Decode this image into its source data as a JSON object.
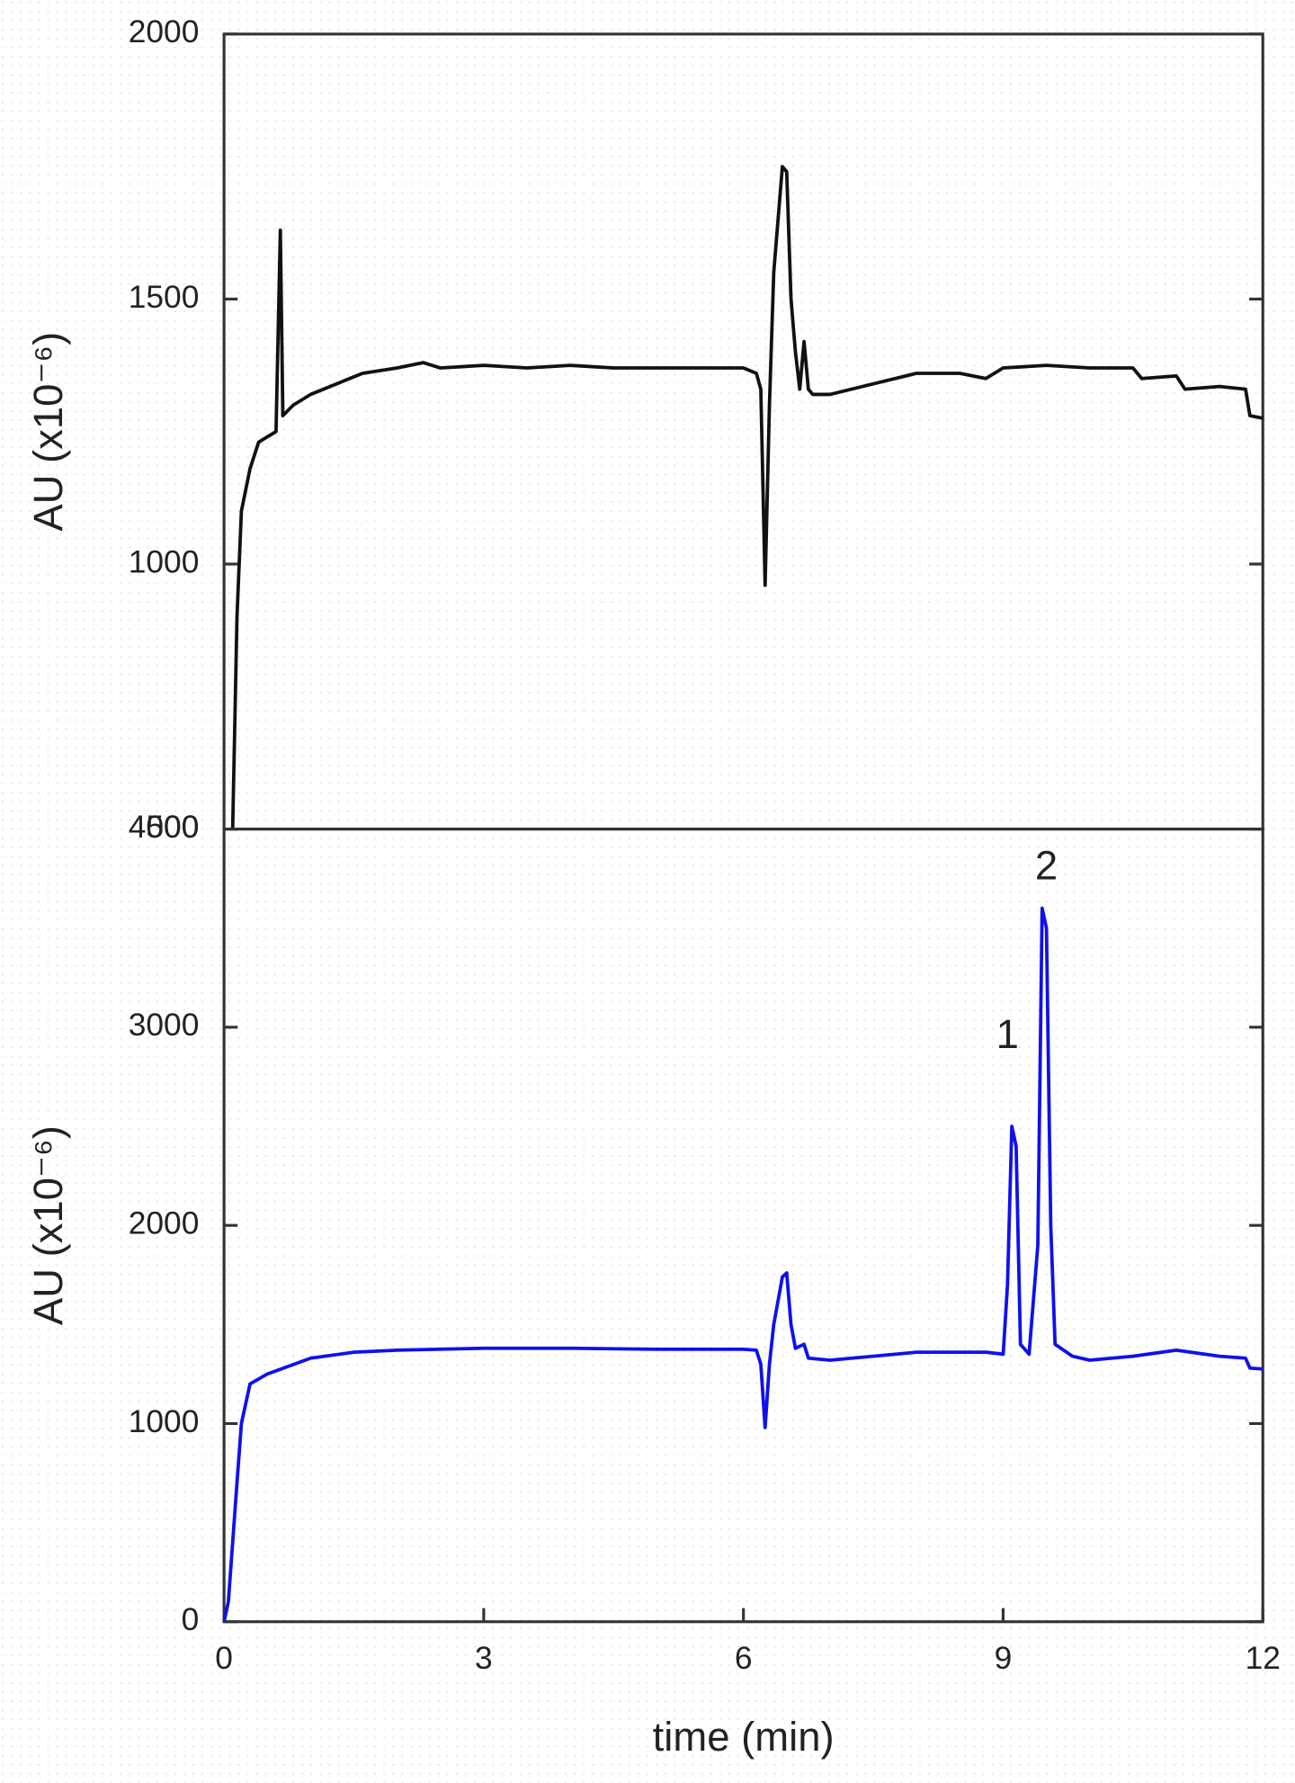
{
  "chart_data": [
    {
      "type": "line",
      "ylabel": "AU (x10⁻⁶)",
      "x": [
        0.1,
        0.15,
        0.2,
        0.3,
        0.4,
        0.5,
        0.6,
        0.65,
        0.68,
        0.8,
        1.0,
        1.3,
        1.6,
        2.0,
        2.3,
        2.5,
        3,
        3.5,
        4,
        4.5,
        5,
        5.5,
        6.0,
        6.15,
        6.2,
        6.25,
        6.3,
        6.35,
        6.45,
        6.5,
        6.55,
        6.6,
        6.65,
        6.7,
        6.75,
        6.8,
        7,
        7.5,
        8,
        8.5,
        8.8,
        9,
        9.5,
        10,
        10.5,
        10.6,
        11,
        11.1,
        11.5,
        11.8,
        11.85,
        12
      ],
      "series": [
        {
          "color": "#111111",
          "values": [
            500,
            900,
            1100,
            1180,
            1230,
            1240,
            1250,
            1630,
            1280,
            1300,
            1320,
            1340,
            1360,
            1370,
            1380,
            1370,
            1375,
            1370,
            1375,
            1370,
            1370,
            1370,
            1370,
            1360,
            1330,
            960,
            1300,
            1550,
            1750,
            1740,
            1500,
            1400,
            1330,
            1420,
            1330,
            1320,
            1320,
            1340,
            1360,
            1360,
            1350,
            1370,
            1375,
            1370,
            1370,
            1350,
            1355,
            1330,
            1335,
            1330,
            1280,
            1275
          ]
        }
      ],
      "xlim": [
        0,
        12
      ],
      "ylim": [
        500,
        2000
      ],
      "yticks": [
        500,
        1000,
        1500,
        2000
      ]
    },
    {
      "type": "line",
      "ylabel": "AU (x10⁻⁶)",
      "xlabel": "time (min)",
      "x": [
        0,
        0.05,
        0.1,
        0.15,
        0.2,
        0.3,
        0.5,
        1,
        1.5,
        2,
        3,
        4,
        5,
        6,
        6.15,
        6.2,
        6.25,
        6.3,
        6.35,
        6.45,
        6.5,
        6.55,
        6.6,
        6.7,
        6.75,
        7,
        8,
        8.8,
        9,
        9.05,
        9.1,
        9.15,
        9.2,
        9.3,
        9.4,
        9.45,
        9.5,
        9.55,
        9.6,
        9.8,
        10,
        10.5,
        11,
        11.5,
        11.8,
        11.85,
        12
      ],
      "series": [
        {
          "color": "#1010ee",
          "values": [
            0,
            100,
            400,
            700,
            1000,
            1200,
            1250,
            1330,
            1360,
            1370,
            1380,
            1380,
            1375,
            1375,
            1370,
            1300,
            980,
            1300,
            1500,
            1740,
            1760,
            1500,
            1380,
            1400,
            1330,
            1320,
            1360,
            1360,
            1350,
            1700,
            2500,
            2400,
            1400,
            1350,
            1900,
            3600,
            3500,
            2000,
            1400,
            1340,
            1320,
            1340,
            1370,
            1340,
            1330,
            1280,
            1275
          ]
        }
      ],
      "annotations": [
        {
          "text": "1",
          "x": 9.05,
          "y": 2950
        },
        {
          "text": "2",
          "x": 9.5,
          "y": 3800
        }
      ],
      "xlim": [
        0,
        12
      ],
      "xticks": [
        0,
        3,
        6,
        9,
        12
      ],
      "ylim": [
        0,
        4000
      ],
      "yticks": [
        0,
        1000,
        2000,
        3000,
        4000
      ]
    }
  ]
}
